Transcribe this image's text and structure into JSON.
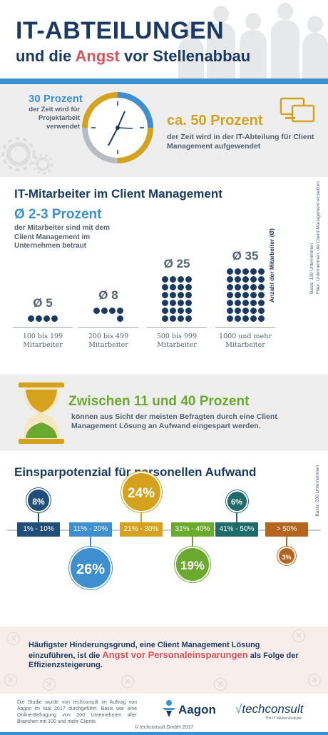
{
  "header": {
    "title_line1": "IT-ABTEILUNGEN",
    "title_line2_pre": "und die ",
    "title_line2_highlight": "Angst",
    "title_line2_post": " vor Stellenabbau"
  },
  "time_split": {
    "share_projects": "30 Prozent",
    "share_projects_text": "der Zeit wird für Projektarbeit verwendet",
    "share_client_mgmt": "ca. 50 Prozent",
    "share_client_mgmt_text": "der Zeit wird in der IT-Abteilung für Client Management aufgewendet"
  },
  "staff": {
    "title": "IT-Mitarbeiter im Client Management",
    "avg_headline": "Ø 2-3 Prozent",
    "avg_text": "der Mitarbeiter sind mit dem Client Management im Unternehmen betraut",
    "axis_label": "Anzahl der Mitarbeiter (Ø)",
    "basis_line1": "Basis: 139 Unternehmen",
    "basis_line2": "Filter: Unternehmen, die Client-Management einsetzen",
    "groups": [
      {
        "avg_label": "Ø 5",
        "avg": 5,
        "category_line1": "100 bis 199",
        "category_line2": "Mitarbeiter"
      },
      {
        "avg_label": "Ø 8",
        "avg": 8,
        "category_line1": "200 bis 499",
        "category_line2": "Mitarbeiter"
      },
      {
        "avg_label": "Ø 25",
        "avg": 25,
        "category_line1": "500 bis 999",
        "category_line2": "Mitarbeiter"
      },
      {
        "avg_label": "Ø 35",
        "avg": 35,
        "category_line1": "1000 und mehr",
        "category_line2": "Mitarbeiter"
      }
    ]
  },
  "savings": {
    "headline": "Zwischen 11 und 40 Prozent",
    "text": "können aus Sicht der meisten Befragten durch eine Client Management Lösung an Aufwand eingespart werden."
  },
  "potential": {
    "title": "Einsparpotenzial für personellen Aufwand",
    "basis": "Basis: 200 Unternehmen",
    "ranges": [
      {
        "range": "1% - 10%",
        "share": "8%",
        "value": 8,
        "color": "#1f4e79",
        "position": "above"
      },
      {
        "range": "11% - 20%",
        "share": "26%",
        "value": 26,
        "color": "#3d8fcf",
        "position": "below"
      },
      {
        "range": "21% - 30%",
        "share": "24%",
        "value": 24,
        "color": "#d4a21c",
        "position": "above"
      },
      {
        "range": "31% - 40%",
        "share": "19%",
        "value": 19,
        "color": "#6aaa2e",
        "position": "below"
      },
      {
        "range": "41% - 50%",
        "share": "6%",
        "value": 6,
        "color": "#1e6b6b",
        "position": "above"
      },
      {
        "range": "> 50%",
        "share": "3%",
        "value": 3,
        "color": "#b5651d",
        "position": "below"
      }
    ]
  },
  "obstacle": {
    "text_pre": "Häufigster Hinderungsgrund, eine Client Management Lösung einzuführen, ist die ",
    "text_highlight": "Angst vor Personaleinsparungen",
    "text_post": " als Folge der Effizienzsteigerung."
  },
  "footer": {
    "note": "Die Studie wurde von techconsult im Auftrag von Aagon im Mai 2017 durchgeführt. Basis war eine Online-Befragung von 200 Unternehmen aller Branchen mit 100 und mehr Clients.",
    "logo_aagon": "Aagon",
    "logo_techconsult": "techconsult",
    "logo_techconsult_sub": "The IT Market Analysts",
    "copyright": "© techconsult GmbH 2017"
  },
  "colors": {
    "navy": "#1a3a63",
    "blue": "#3d8fcf",
    "gold": "#d4a21c",
    "green": "#6aaa2e",
    "red": "#d9545a"
  }
}
